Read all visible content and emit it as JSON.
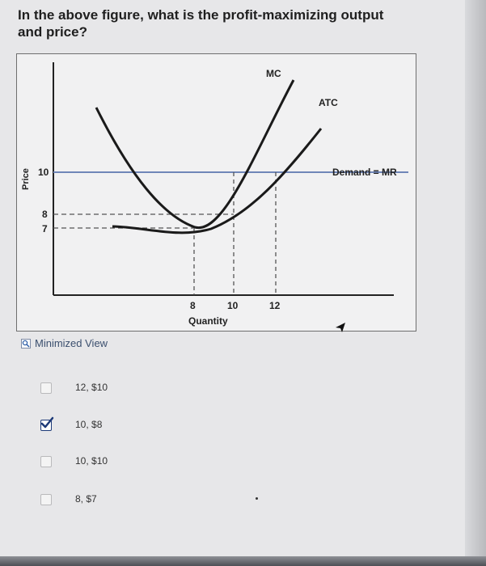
{
  "question": {
    "text": "In the above figure, what is the profit-maximizing output and price?"
  },
  "figure": {
    "y_axis_label": "Price",
    "x_axis_label": "Quantity",
    "x_ticks": [
      "8",
      "10",
      "12"
    ],
    "y_ticks": [
      "10",
      "8",
      "7"
    ],
    "curve_labels": {
      "mc": "MC",
      "atc": "ATC",
      "demand": "Demand = MR"
    },
    "colors": {
      "curves": "#1a1a1a",
      "demand_line": "#6f86b8",
      "dashed": "#555555"
    }
  },
  "minimized_view": {
    "label": "Minimized View",
    "icon": "magnifier-icon"
  },
  "options": [
    {
      "label": "12, $10",
      "checked": false
    },
    {
      "label": "10, $8",
      "checked": true
    },
    {
      "label": "10, $10",
      "checked": false
    },
    {
      "label": "8, $7",
      "checked": false
    }
  ]
}
